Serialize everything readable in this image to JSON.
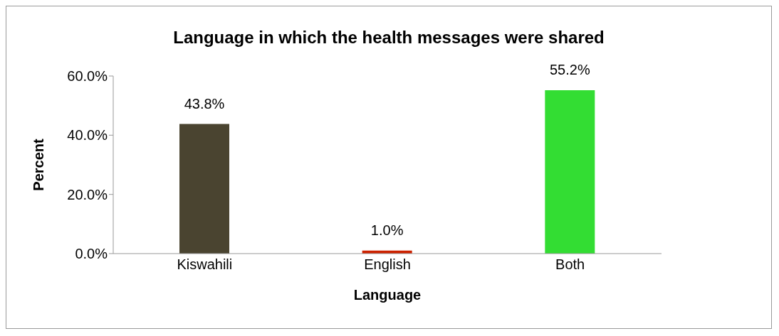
{
  "chart_data": {
    "type": "bar",
    "title": "Language in which the health messages were shared",
    "xlabel": "Language",
    "ylabel": "Percent",
    "categories": [
      "Kiswahili",
      "English",
      "Both"
    ],
    "values": [
      43.8,
      1.0,
      55.2
    ],
    "colors": [
      "#4a4430",
      "#cc2200",
      "#33dd33"
    ],
    "value_labels": [
      "43.8%",
      "1.0%",
      "55.2%"
    ],
    "ylim": [
      0,
      60
    ],
    "yticks": [
      {
        "value": 0,
        "label": "0.0%"
      },
      {
        "value": 20,
        "label": "20.0%"
      },
      {
        "value": 40,
        "label": "40.0%"
      },
      {
        "value": 60,
        "label": "60.0%"
      }
    ],
    "grid": false,
    "legend": false
  }
}
